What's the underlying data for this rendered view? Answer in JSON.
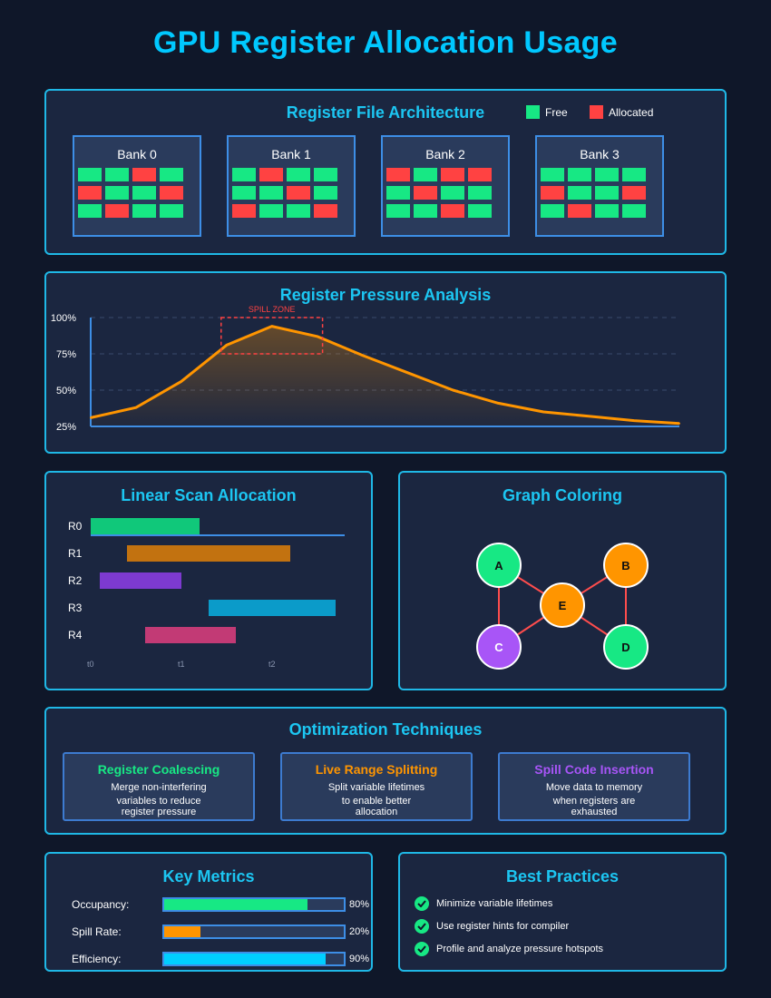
{
  "title": "GPU Register Allocation Usage",
  "colors": {
    "accent": "#00c8ff",
    "free": "#17e884",
    "allocated": "#ff4242",
    "orange": "#ff9500",
    "purple": "#a855f7",
    "cyan": "#00cfff"
  },
  "register_file": {
    "title": "Register File Architecture",
    "legend": {
      "free": "Free",
      "allocated": "Allocated"
    },
    "banks": [
      {
        "label": "Bank 0",
        "cells": [
          "F",
          "F",
          "A",
          "F",
          "A",
          "F",
          "F",
          "A",
          "F",
          "A",
          "F",
          "F"
        ]
      },
      {
        "label": "Bank 1",
        "cells": [
          "F",
          "A",
          "F",
          "F",
          "F",
          "F",
          "A",
          "F",
          "A",
          "F",
          "F",
          "A"
        ]
      },
      {
        "label": "Bank 2",
        "cells": [
          "A",
          "F",
          "A",
          "A",
          "F",
          "A",
          "F",
          "F",
          "F",
          "F",
          "A",
          "F"
        ]
      },
      {
        "label": "Bank 3",
        "cells": [
          "F",
          "F",
          "F",
          "F",
          "A",
          "F",
          "F",
          "A",
          "F",
          "A",
          "F",
          "F"
        ]
      }
    ]
  },
  "pressure": {
    "title": "Register Pressure Analysis",
    "spill_zone_label": "SPILL ZONE",
    "y_ticks": [
      "100%",
      "75%",
      "50%",
      "25%"
    ]
  },
  "chart_data": {
    "type": "area",
    "title": "Register Pressure Analysis",
    "xlabel": "",
    "ylabel": "",
    "ylim": [
      25,
      100
    ],
    "y_ticks": [
      25,
      50,
      75,
      100
    ],
    "x": [
      0,
      1,
      2,
      3,
      4,
      5,
      6,
      7,
      8,
      9,
      10,
      11,
      12,
      13
    ],
    "values": [
      31,
      38,
      56,
      81,
      94,
      87,
      74,
      62,
      50,
      41,
      35,
      32,
      29,
      27
    ],
    "annotations": [
      {
        "label": "SPILL ZONE",
        "x_range": [
          2.8,
          5.2
        ],
        "y_range": [
          75,
          100
        ]
      }
    ],
    "grid": true
  },
  "linear_scan": {
    "title": "Linear Scan Allocation",
    "registers": [
      {
        "label": "R0",
        "start": 0.0,
        "end": 1.2,
        "color": "#10c87a"
      },
      {
        "label": "R1",
        "start": 0.4,
        "end": 2.2,
        "color": "#c27210"
      },
      {
        "label": "R2",
        "start": 0.1,
        "end": 1.0,
        "color": "#7d3ad0"
      },
      {
        "label": "R3",
        "start": 1.3,
        "end": 2.7,
        "color": "#0b9bc9"
      },
      {
        "label": "R4",
        "start": 0.6,
        "end": 1.6,
        "color": "#c23a75"
      }
    ],
    "ticks": [
      "t0",
      "t1",
      "t2"
    ]
  },
  "graph_coloring": {
    "title": "Graph Coloring",
    "nodes": [
      {
        "id": "A",
        "color": "#17e884"
      },
      {
        "id": "B",
        "color": "#ff9500"
      },
      {
        "id": "E",
        "color": "#ff9500"
      },
      {
        "id": "C",
        "color": "#a855f7"
      },
      {
        "id": "D",
        "color": "#17e884"
      }
    ],
    "edges": [
      [
        "A",
        "E"
      ],
      [
        "A",
        "C"
      ],
      [
        "B",
        "E"
      ],
      [
        "B",
        "D"
      ],
      [
        "E",
        "C"
      ],
      [
        "E",
        "D"
      ]
    ]
  },
  "techniques": {
    "title": "Optimization Techniques",
    "items": [
      {
        "title": "Register Coalescing",
        "color": "#17e884",
        "lines": [
          "Merge non-interfering",
          "variables to reduce",
          "register pressure"
        ]
      },
      {
        "title": "Live Range Splitting",
        "color": "#ff9500",
        "lines": [
          "Split variable lifetimes",
          "to enable better",
          "allocation"
        ]
      },
      {
        "title": "Spill Code Insertion",
        "color": "#a855f7",
        "lines": [
          "Move data to memory",
          "when registers are",
          "exhausted"
        ]
      }
    ]
  },
  "metrics": {
    "title": "Key Metrics",
    "items": [
      {
        "label": "Occupancy:",
        "value": "80%",
        "fraction": 0.8,
        "color": "#17e884"
      },
      {
        "label": "Spill Rate:",
        "value": "20%",
        "fraction": 0.2,
        "color": "#ff9500"
      },
      {
        "label": "Efficiency:",
        "value": "90%",
        "fraction": 0.9,
        "color": "#00cfff"
      }
    ]
  },
  "practices": {
    "title": "Best Practices",
    "items": [
      "Minimize variable lifetimes",
      "Use register hints for compiler",
      "Profile and analyze pressure hotspots"
    ]
  }
}
